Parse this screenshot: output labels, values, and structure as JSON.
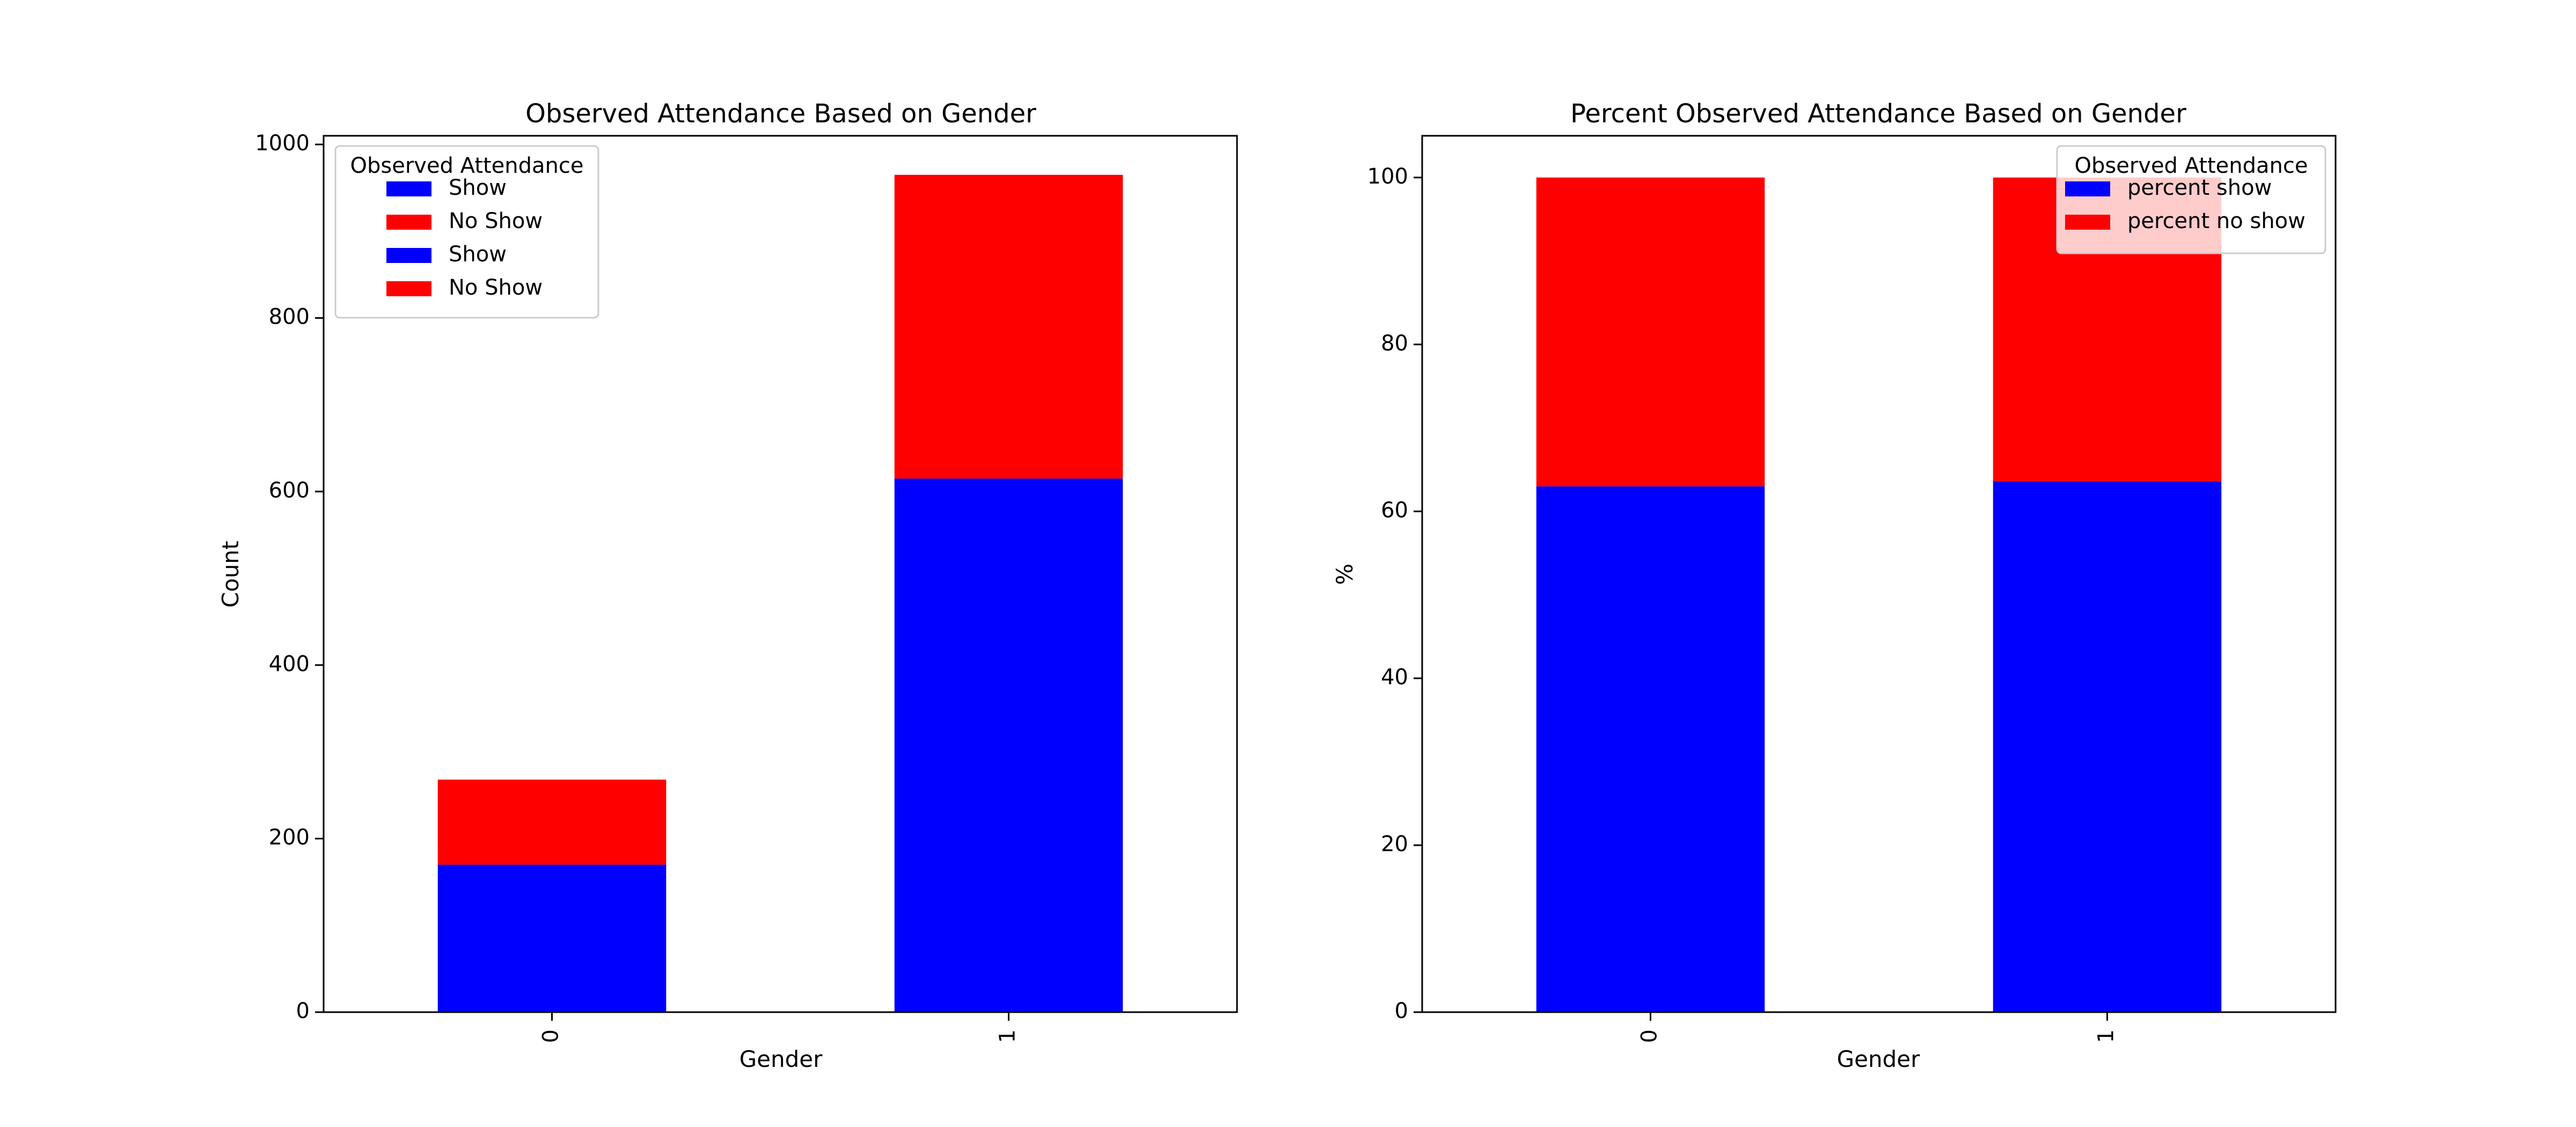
{
  "chart_data": [
    {
      "type": "bar",
      "stacked": true,
      "title": "Observed Attendance Based on Gender",
      "xlabel": "Gender",
      "ylabel": "Count",
      "categories": [
        "0",
        "1"
      ],
      "ylim": [
        0,
        1010
      ],
      "yticks": [
        0,
        200,
        400,
        600,
        800,
        1000
      ],
      "series": [
        {
          "values": [
            170,
            615
          ],
          "color": "#0000ff"
        },
        {
          "values": [
            98,
            350
          ],
          "color": "#ff0000"
        }
      ],
      "legend": {
        "title": "Observed Attendance",
        "placement": "top-left",
        "entries": [
          {
            "label": "Show",
            "color": "#0000ff"
          },
          {
            "label": "No Show",
            "color": "#ff0000"
          },
          {
            "label": "Show",
            "color": "#0000ff"
          },
          {
            "label": "No Show",
            "color": "#ff0000"
          }
        ]
      },
      "grid": false
    },
    {
      "type": "bar",
      "stacked": true,
      "title": "Percent Observed Attendance Based on Gender",
      "xlabel": "Gender",
      "ylabel": "%",
      "categories": [
        "0",
        "1"
      ],
      "ylim": [
        0,
        105
      ],
      "yticks": [
        0,
        20,
        40,
        60,
        80,
        100
      ],
      "series": [
        {
          "name": "percent show",
          "values": [
            63,
            63.6
          ],
          "color": "#0000ff"
        },
        {
          "name": "percent no show",
          "values": [
            37,
            36.4
          ],
          "color": "#ff0000"
        }
      ],
      "legend": {
        "title": "Observed Attendance",
        "placement": "top-right",
        "entries": [
          {
            "label": "percent show",
            "color": "#0000ff"
          },
          {
            "label": "percent no show",
            "color": "#ff0000"
          }
        ]
      },
      "grid": false
    }
  ]
}
